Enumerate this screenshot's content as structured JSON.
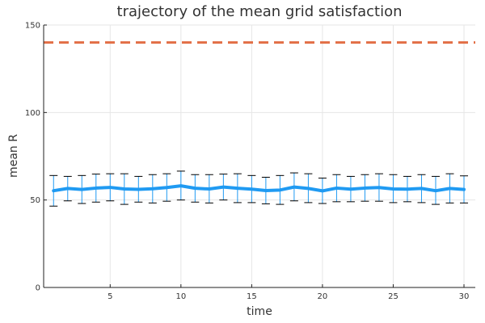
{
  "chart_data": {
    "type": "line",
    "title": "trajectory of the mean grid satisfaction",
    "xlabel": "time",
    "ylabel": "mean R",
    "xlim": [
      0.3,
      30.8
    ],
    "ylim": [
      0,
      150
    ],
    "xticks": [
      5,
      10,
      15,
      20,
      25,
      30
    ],
    "yticks": [
      0,
      50,
      100,
      150
    ],
    "grid": true,
    "legend": "none",
    "series": [
      {
        "type": "line-errorbar",
        "color": "#1f9af2",
        "x": [
          1,
          2,
          3,
          4,
          5,
          6,
          7,
          8,
          9,
          10,
          11,
          12,
          13,
          14,
          15,
          16,
          17,
          18,
          19,
          20,
          21,
          22,
          23,
          24,
          25,
          26,
          27,
          28,
          29,
          30
        ],
        "y": [
          55.3,
          56.6,
          56.0,
          56.8,
          57.2,
          56.3,
          56.1,
          56.4,
          57.1,
          58.1,
          56.7,
          56.3,
          57.4,
          56.7,
          56.2,
          55.4,
          55.7,
          57.4,
          56.6,
          55.2,
          56.8,
          56.2,
          56.8,
          57.1,
          56.3,
          56.2,
          56.6,
          55.3,
          56.6,
          56.0
        ],
        "upper": [
          64.0,
          63.5,
          64.0,
          64.8,
          65.0,
          65.0,
          63.5,
          64.5,
          65.0,
          66.5,
          64.5,
          64.5,
          64.8,
          65.0,
          64.0,
          63.0,
          64.0,
          65.5,
          65.0,
          62.5,
          64.5,
          63.5,
          64.5,
          65.0,
          64.5,
          63.5,
          64.5,
          63.5,
          65.0,
          63.8
        ],
        "lower": [
          46.5,
          49.5,
          48.0,
          48.8,
          49.5,
          47.5,
          48.8,
          48.3,
          49.3,
          50.0,
          48.8,
          48.3,
          50.0,
          48.5,
          48.5,
          47.8,
          47.5,
          49.5,
          48.5,
          48.0,
          49.0,
          49.0,
          49.3,
          49.3,
          48.5,
          49.0,
          48.5,
          47.5,
          48.3,
          48.3
        ]
      },
      {
        "type": "hline",
        "color": "#e26f46",
        "dash": "dashed",
        "y": 140
      }
    ]
  }
}
